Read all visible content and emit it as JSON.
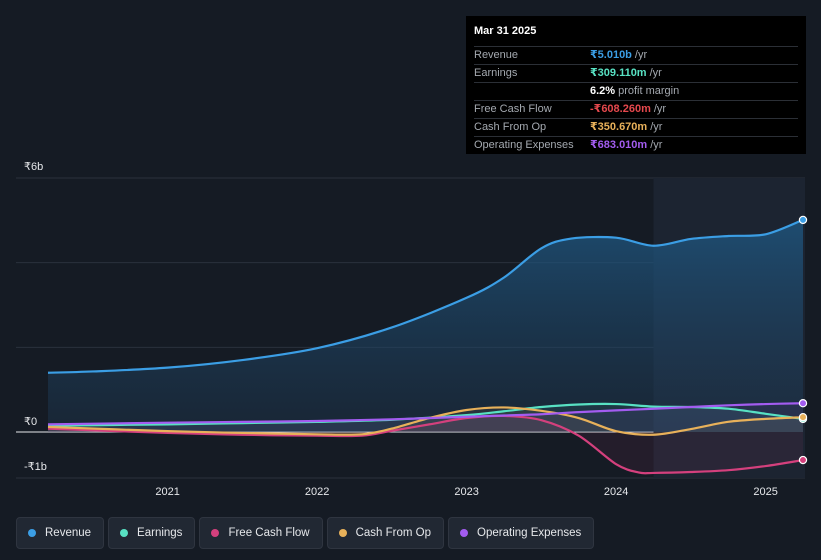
{
  "tooltip": {
    "date": "Mar 31 2025",
    "rows": [
      {
        "label": "Revenue",
        "value": "₹5.010b",
        "unit": "/yr",
        "color": "#3b9ee5"
      },
      {
        "label": "Earnings",
        "value": "₹309.110m",
        "unit": "/yr",
        "color": "#58e1c3"
      },
      {
        "label": "",
        "value": "6.2%",
        "unit": "profit margin",
        "color": "#ffffff"
      },
      {
        "label": "Free Cash Flow",
        "value": "-₹608.260m",
        "unit": "/yr",
        "color": "#e5484d"
      },
      {
        "label": "Cash From Op",
        "value": "₹350.670m",
        "unit": "/yr",
        "color": "#e8b15a"
      },
      {
        "label": "Operating Expenses",
        "value": "₹683.010m",
        "unit": "/yr",
        "color": "#a35cf0"
      }
    ]
  },
  "legend": [
    {
      "label": "Revenue",
      "color": "#3b9ee5"
    },
    {
      "label": "Earnings",
      "color": "#58e1c3"
    },
    {
      "label": "Free Cash Flow",
      "color": "#d4407d"
    },
    {
      "label": "Cash From Op",
      "color": "#e8b15a"
    },
    {
      "label": "Operating Expenses",
      "color": "#a35cf0"
    }
  ],
  "chart_data": {
    "type": "line",
    "y_tick_labels": [
      "₹6b",
      "₹0",
      "-₹1b"
    ],
    "x_tick_labels": [
      "2021",
      "2022",
      "2023",
      "2024",
      "2025"
    ],
    "ylim": [
      -1,
      6
    ],
    "xlim": [
      2020.2,
      2025.25
    ],
    "grid": true,
    "highlight_start": 2024.25,
    "series": [
      {
        "name": "Revenue",
        "color": "#3b9ee5",
        "x": [
          2020.2,
          2020.5,
          2021.0,
          2021.5,
          2022.0,
          2022.5,
          2023.0,
          2023.25,
          2023.5,
          2023.7,
          2024.0,
          2024.25,
          2024.5,
          2024.75,
          2025.0,
          2025.25
        ],
        "y": [
          1.4,
          1.43,
          1.52,
          1.7,
          1.98,
          2.47,
          3.17,
          3.65,
          4.34,
          4.57,
          4.59,
          4.4,
          4.56,
          4.63,
          4.67,
          5.01
        ]
      },
      {
        "name": "Earnings",
        "color": "#58e1c3",
        "x": [
          2020.2,
          2021.0,
          2021.5,
          2022.0,
          2022.5,
          2023.0,
          2023.25,
          2023.5,
          2023.75,
          2024.0,
          2024.25,
          2024.5,
          2024.75,
          2025.0,
          2025.25
        ],
        "y": [
          0.15,
          0.18,
          0.21,
          0.24,
          0.29,
          0.4,
          0.49,
          0.59,
          0.65,
          0.66,
          0.6,
          0.59,
          0.55,
          0.43,
          0.31
        ]
      },
      {
        "name": "Free Cash Flow",
        "color": "#d4407d",
        "x": [
          2020.2,
          2021.0,
          2021.5,
          2022.0,
          2022.3,
          2022.5,
          2022.75,
          2023.0,
          2023.25,
          2023.5,
          2023.75,
          2024.0,
          2024.15,
          2024.25,
          2024.5,
          2024.75,
          2025.0,
          2025.25
        ],
        "y": [
          0.08,
          -0.02,
          -0.06,
          -0.08,
          -0.08,
          0.03,
          0.18,
          0.33,
          0.38,
          0.28,
          -0.08,
          -0.7,
          -0.88,
          -0.89,
          -0.87,
          -0.83,
          -0.74,
          -0.61
        ]
      },
      {
        "name": "Cash From Op",
        "color": "#e8b15a",
        "x": [
          2020.2,
          2021.0,
          2021.5,
          2022.0,
          2022.3,
          2022.5,
          2022.75,
          2023.0,
          2023.25,
          2023.5,
          2023.75,
          2024.0,
          2024.25,
          2024.5,
          2024.75,
          2025.0,
          2025.25
        ],
        "y": [
          0.12,
          0.02,
          -0.02,
          -0.05,
          -0.05,
          0.08,
          0.33,
          0.52,
          0.58,
          0.5,
          0.33,
          0.02,
          -0.06,
          0.07,
          0.24,
          0.31,
          0.35
        ]
      },
      {
        "name": "Operating Expenses",
        "color": "#a35cf0",
        "x": [
          2020.2,
          2021.0,
          2021.5,
          2022.0,
          2022.5,
          2023.0,
          2023.25,
          2023.5,
          2023.75,
          2024.0,
          2024.25,
          2024.5,
          2024.75,
          2025.0,
          2025.25
        ],
        "y": [
          0.18,
          0.22,
          0.24,
          0.26,
          0.3,
          0.36,
          0.39,
          0.42,
          0.47,
          0.51,
          0.55,
          0.59,
          0.63,
          0.66,
          0.68
        ]
      }
    ]
  }
}
